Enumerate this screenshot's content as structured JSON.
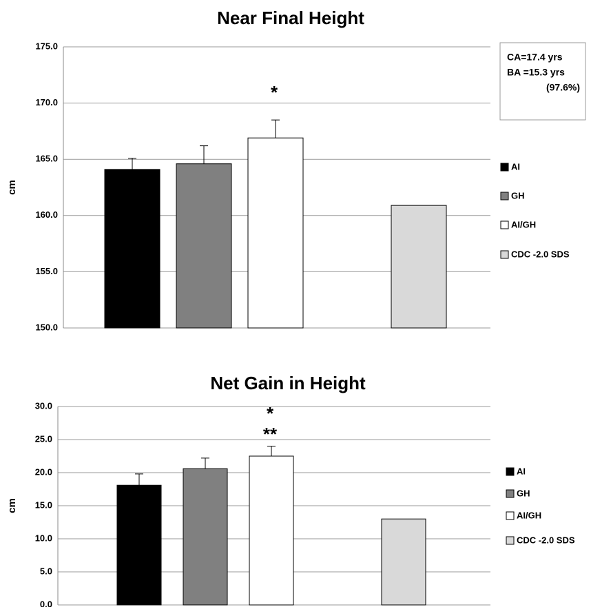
{
  "chart_data": [
    {
      "type": "bar",
      "title": "Near Final Height",
      "y_label": "cm",
      "categories": [
        "AI",
        "GH",
        "AI/GH",
        "CDC -2.0 SDS"
      ],
      "values": [
        164.1,
        164.6,
        166.9,
        160.9
      ],
      "errors": [
        1.0,
        1.6,
        1.6,
        null
      ],
      "colors": [
        "#000000",
        "#808080",
        "#ffffff",
        "#d9d9d9"
      ],
      "ylim": [
        150,
        175
      ],
      "yticks": [
        {
          "value": 150,
          "label": "150.0"
        },
        {
          "value": 155,
          "label": "155.0"
        },
        {
          "value": 160,
          "label": "160.0"
        },
        {
          "value": 165,
          "label": "165.0"
        },
        {
          "value": 170,
          "label": "170.0"
        },
        {
          "value": 175,
          "label": "175.0"
        }
      ],
      "grid": true,
      "annotations": [
        "*"
      ],
      "info_box": [
        "CA=17.4 yrs",
        "BA =15.3 yrs",
        "(97.6%)"
      ]
    },
    {
      "type": "bar",
      "title": "Net Gain in Height",
      "y_label": "cm",
      "categories": [
        "AI",
        "GH",
        "AI/GH",
        "CDC -2.0 SDS"
      ],
      "values": [
        18.1,
        20.6,
        22.5,
        13.0
      ],
      "errors": [
        1.7,
        1.6,
        1.5,
        null
      ],
      "colors": [
        "#000000",
        "#808080",
        "#ffffff",
        "#d9d9d9"
      ],
      "ylim": [
        0,
        30
      ],
      "yticks": [
        {
          "value": 0,
          "label": "0.0"
        },
        {
          "value": 5,
          "label": "5.0"
        },
        {
          "value": 10,
          "label": "10.0"
        },
        {
          "value": 15,
          "label": "15.0"
        },
        {
          "value": 20,
          "label": "20.0"
        },
        {
          "value": 25,
          "label": "25.0"
        },
        {
          "value": 30,
          "label": "30.0"
        }
      ],
      "grid": true,
      "annotations": [
        "*",
        "**"
      ]
    }
  ]
}
